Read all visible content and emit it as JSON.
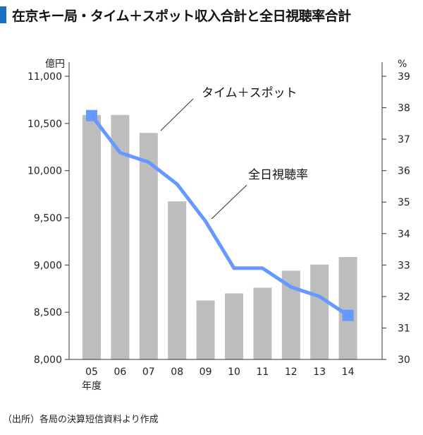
{
  "title": "在京キー局・タイム＋スポット収入合計と全日視聴率合計",
  "source": "（出所）各局の決算短信資料より作成",
  "colors": {
    "bar": "#bdbdbd",
    "line": "#6699ff",
    "title_mark": "#1a6fc4"
  },
  "chart_data": {
    "type": "bar+line",
    "title": "在京キー局・タイム＋スポット収入合計と全日視聴率合計",
    "xlabel": "年度",
    "categories": [
      "05",
      "06",
      "07",
      "08",
      "09",
      "10",
      "11",
      "12",
      "13",
      "14"
    ],
    "left_axis": {
      "unit": "億円",
      "ylim": [
        8000,
        11000
      ],
      "ticks": [
        "8,000",
        "8,500",
        "9,000",
        "9,500",
        "10,000",
        "10,500",
        "11,000"
      ]
    },
    "right_axis": {
      "unit": "%",
      "ylim": [
        30,
        39
      ],
      "ticks": [
        "30",
        "31",
        "32",
        "33",
        "34",
        "35",
        "36",
        "37",
        "38",
        "39"
      ]
    },
    "series": [
      {
        "name": "タイム＋スポット",
        "type": "bar",
        "axis": "left",
        "values": [
          10590,
          10590,
          10400,
          9675,
          8625,
          8700,
          8760,
          8940,
          9005,
          9085
        ]
      },
      {
        "name": "全日視聴率",
        "type": "line",
        "axis": "right",
        "values": [
          37.75,
          36.57,
          36.27,
          35.57,
          34.39,
          32.9,
          32.9,
          32.3,
          32.0,
          31.4
        ]
      }
    ]
  }
}
